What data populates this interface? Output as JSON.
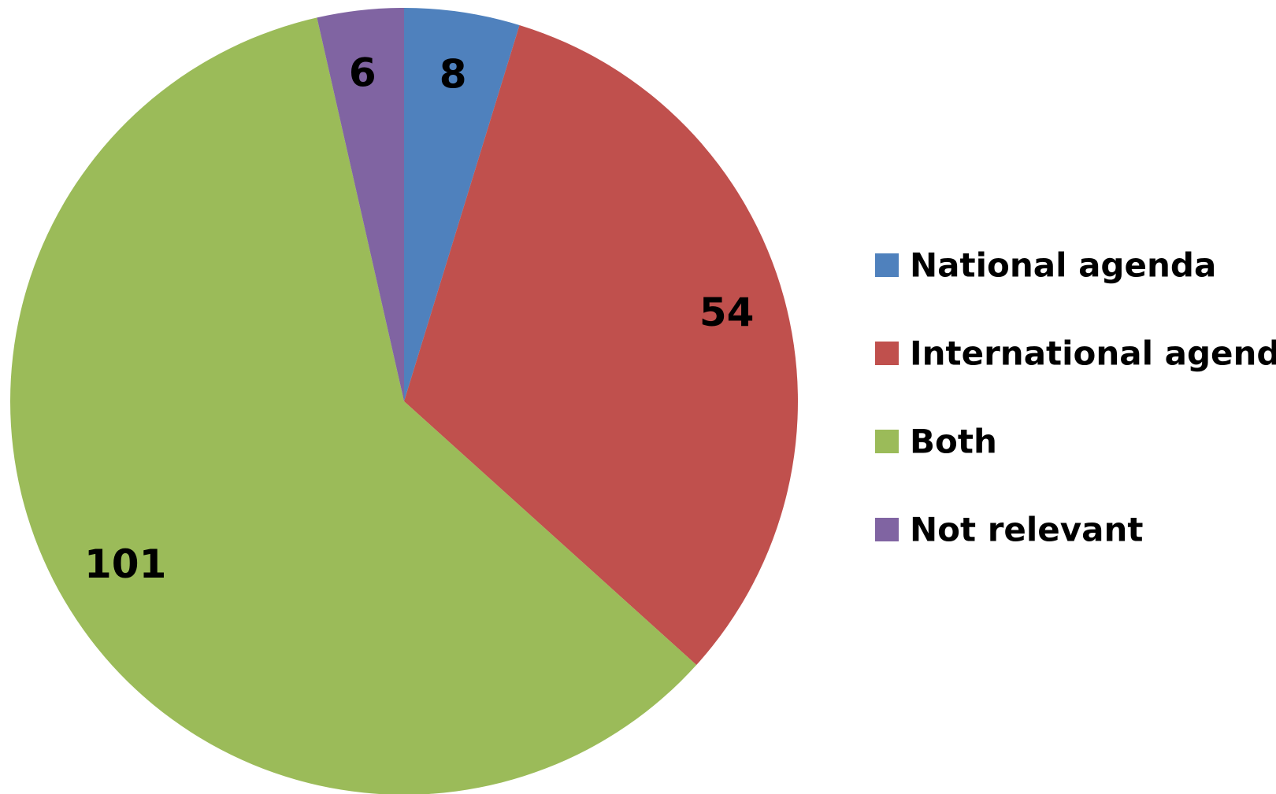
{
  "chart_data": {
    "type": "pie",
    "categories": [
      "National agenda",
      "International agenda",
      "Both",
      "Not relevant"
    ],
    "values": [
      8,
      54,
      101,
      6
    ],
    "data_labels": [
      "8",
      "54",
      "101",
      "6"
    ],
    "colors": [
      "#4f81bd",
      "#c0504d",
      "#9bbb59",
      "#8064a2"
    ],
    "start_angle_deg": 0,
    "direction": "clockwise",
    "legend_position": "right",
    "title": ""
  }
}
